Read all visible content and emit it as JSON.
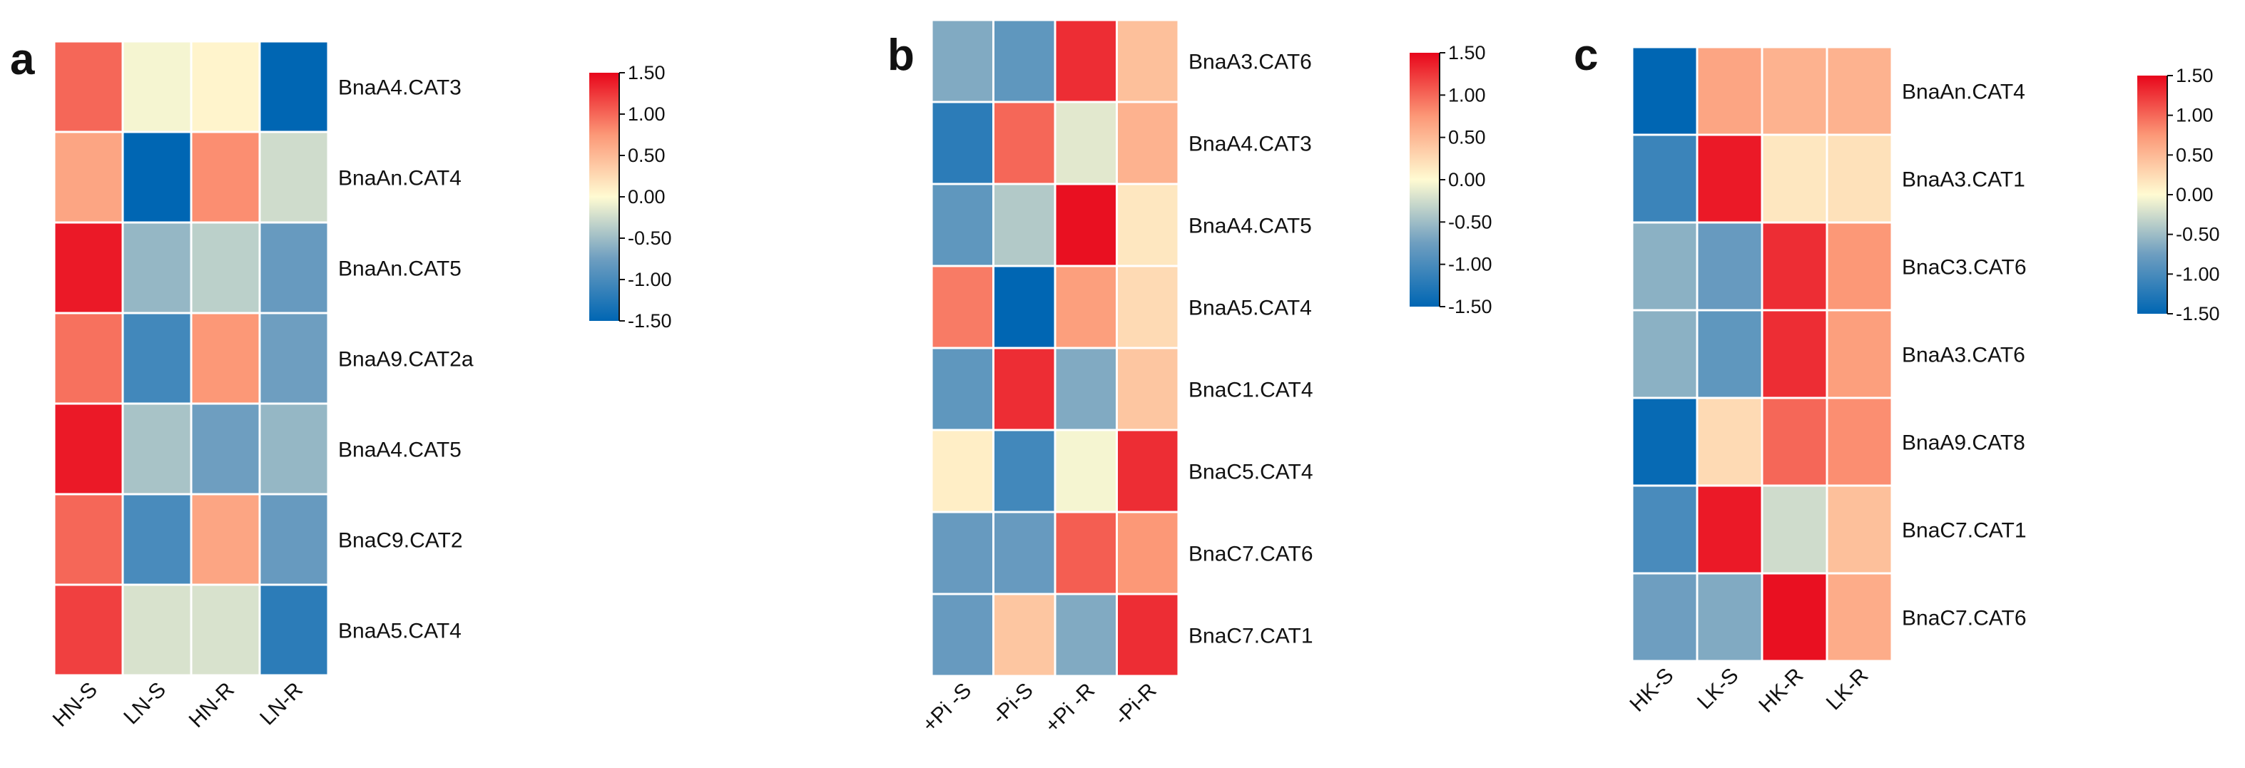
{
  "figure": {
    "color_scale": {
      "min": -1.5,
      "max": 1.5,
      "stops": [
        {
          "value": -1.5,
          "color": "#0066b3"
        },
        {
          "value": -0.75,
          "color": "#6e9ec0"
        },
        {
          "value": 0.0,
          "color": "#fffbd2"
        },
        {
          "value": 0.75,
          "color": "#fc9877"
        },
        {
          "value": 1.5,
          "color": "#e8061b"
        }
      ]
    }
  },
  "chart_data": [
    {
      "type": "heatmap",
      "panel_label": "a",
      "rows": [
        "BnaA4.CAT3",
        "BnaAn.CAT4",
        "BnaAn.CAT5",
        "BnaA9.CAT2a",
        "BnaA4.CAT5",
        "BnaC9.CAT2",
        "BnaA5.CAT4"
      ],
      "columns": [
        "HN-S",
        "LN-S",
        "HN-R",
        "LN-R"
      ],
      "values": [
        [
          1.0,
          -0.05,
          0.05,
          -1.5
        ],
        [
          0.65,
          -1.5,
          0.8,
          -0.25
        ],
        [
          1.4,
          -0.55,
          -0.35,
          -0.8
        ],
        [
          0.95,
          -1.05,
          0.75,
          -0.75
        ],
        [
          1.4,
          -0.45,
          -0.75,
          -0.55
        ],
        [
          1.0,
          -1.0,
          0.65,
          -0.8
        ],
        [
          1.2,
          -0.2,
          -0.2,
          -1.2
        ]
      ],
      "colorbar_ticks": [
        "1.50",
        "1.00",
        "0.50",
        "0.00",
        "-0.50",
        "-1.00",
        "-1.50"
      ]
    },
    {
      "type": "heatmap",
      "panel_label": "b",
      "rows": [
        "BnaA3.CAT6",
        "BnaA4.CAT3",
        "BnaA4.CAT5",
        "BnaA5.CAT4",
        "BnaC1.CAT4",
        "BnaC5.CAT4",
        "BnaC7.CAT6",
        "BnaC7.CAT1"
      ],
      "columns": [
        "+Pi -S",
        "-Pi-S",
        "+Pi -R",
        "-Pi-R"
      ],
      "values": [
        [
          -0.65,
          -0.85,
          1.3,
          0.45
        ],
        [
          -1.2,
          1.0,
          -0.15,
          0.55
        ],
        [
          -0.85,
          -0.4,
          1.45,
          0.15
        ],
        [
          0.9,
          -1.5,
          0.7,
          0.25
        ],
        [
          -0.85,
          1.3,
          -0.65,
          0.4
        ],
        [
          0.1,
          -1.05,
          -0.05,
          1.3
        ],
        [
          -0.8,
          -0.8,
          1.05,
          0.75
        ],
        [
          -0.8,
          0.4,
          -0.65,
          1.3
        ]
      ],
      "colorbar_ticks": [
        "1.50",
        "1.00",
        "0.50",
        "0.00",
        "-0.50",
        "-1.00",
        "-1.50"
      ]
    },
    {
      "type": "heatmap",
      "panel_label": "c",
      "rows": [
        "BnaAn.CAT4",
        "BnaA3.CAT1",
        "BnaC3.CAT6",
        "BnaA3.CAT6",
        "BnaA9.CAT8",
        "BnaC7.CAT1",
        "BnaC7.CAT6"
      ],
      "columns": [
        "HK-S",
        "LK-S",
        "HK-R",
        "LK-R"
      ],
      "values": [
        [
          -1.5,
          0.65,
          0.55,
          0.55
        ],
        [
          -1.1,
          1.4,
          0.15,
          0.2
        ],
        [
          -0.6,
          -0.8,
          1.3,
          0.75
        ],
        [
          -0.6,
          -0.85,
          1.3,
          0.7
        ],
        [
          -1.45,
          0.25,
          1.0,
          0.8
        ],
        [
          -1.0,
          1.4,
          -0.25,
          0.45
        ],
        [
          -0.75,
          -0.65,
          1.45,
          0.6
        ]
      ],
      "colorbar_ticks": [
        "1.50",
        "1.00",
        "0.50",
        "0.00",
        "-0.50",
        "-1.00",
        "-1.50"
      ]
    }
  ]
}
